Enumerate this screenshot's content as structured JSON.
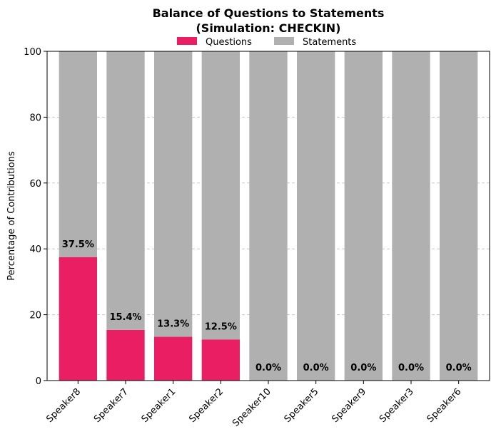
{
  "chart_data": {
    "type": "bar",
    "stacked": true,
    "title_lines": [
      "Balance of Questions to Statements",
      "(Simulation: CHECKIN)"
    ],
    "xlabel": "",
    "ylabel": "Percentage of Contributions",
    "ylim": [
      0,
      100
    ],
    "yticks": [
      "0",
      "20",
      "40",
      "60",
      "80",
      "100"
    ],
    "grid": "y-dashed",
    "legend_placement": "top-center",
    "categories": [
      "Speaker8",
      "Speaker7",
      "Speaker1",
      "Speaker2",
      "Speaker10",
      "Speaker5",
      "Speaker9",
      "Speaker3",
      "Speaker6"
    ],
    "series": [
      {
        "name": "Questions",
        "color": "#e91e63",
        "values": [
          37.5,
          15.4,
          13.3,
          12.5,
          0,
          0,
          0,
          0,
          0
        ]
      },
      {
        "name": "Statements",
        "color": "#b0b0b0",
        "values": [
          62.5,
          84.6,
          86.7,
          87.5,
          100,
          100,
          100,
          100,
          100
        ]
      }
    ],
    "data_labels": [
      "37.5%",
      "15.4%",
      "13.3%",
      "12.5%",
      "0.0%",
      "0.0%",
      "0.0%",
      "0.0%",
      "0.0%"
    ]
  }
}
